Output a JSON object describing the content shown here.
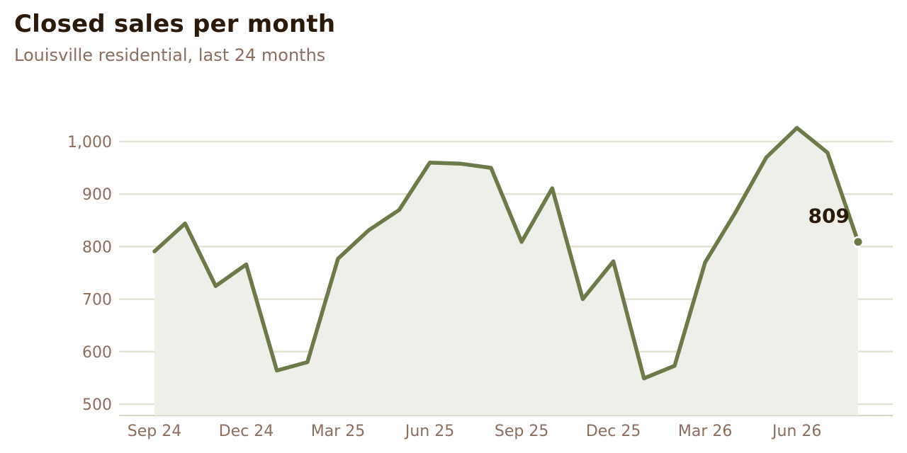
{
  "title": "Closed sales per month",
  "subtitle": "Louisville residential, last 24 months",
  "colors": {
    "line": "#6b7a48",
    "area": "#efefea",
    "grid": "#e3e3d3",
    "baseline": "#d6d6c4",
    "text_muted": "#8a6e60",
    "text_dark": "#2a1a0c"
  },
  "chart_data": {
    "type": "area",
    "x": [
      "Sep 24",
      "Oct 24",
      "Nov 24",
      "Dec 24",
      "Jan 25",
      "Feb 25",
      "Mar 25",
      "Apr 25",
      "May 25",
      "Jun 25",
      "Jul 25",
      "Aug 25",
      "Sep 25",
      "Oct 25",
      "Nov 25",
      "Dec 25",
      "Jan 26",
      "Feb 26",
      "Mar 26",
      "Apr 26",
      "May 26",
      "Jun 26",
      "Jul 26",
      "Aug 26"
    ],
    "series": [
      {
        "values": [
          791,
          844,
          725,
          766,
          564,
          580,
          777,
          831,
          870,
          960,
          958,
          950,
          809,
          911,
          700,
          772,
          549,
          573,
          770,
          866,
          970,
          1026,
          979,
          809
        ]
      }
    ],
    "xtick_labels": [
      "Sep 24",
      "Dec 24",
      "Mar 25",
      "Jun 25",
      "Sep 25",
      "Dec 25",
      "Mar 26",
      "Jun 26"
    ],
    "xtick_index": [
      0,
      3,
      6,
      9,
      12,
      15,
      18,
      21
    ],
    "yticks": [
      500,
      600,
      700,
      800,
      900,
      1000
    ],
    "ytick_labels": [
      "500",
      "600",
      "700",
      "800",
      "900",
      "1,000"
    ],
    "ylim": [
      478,
      1080
    ],
    "grid": true,
    "end_label": "809"
  }
}
